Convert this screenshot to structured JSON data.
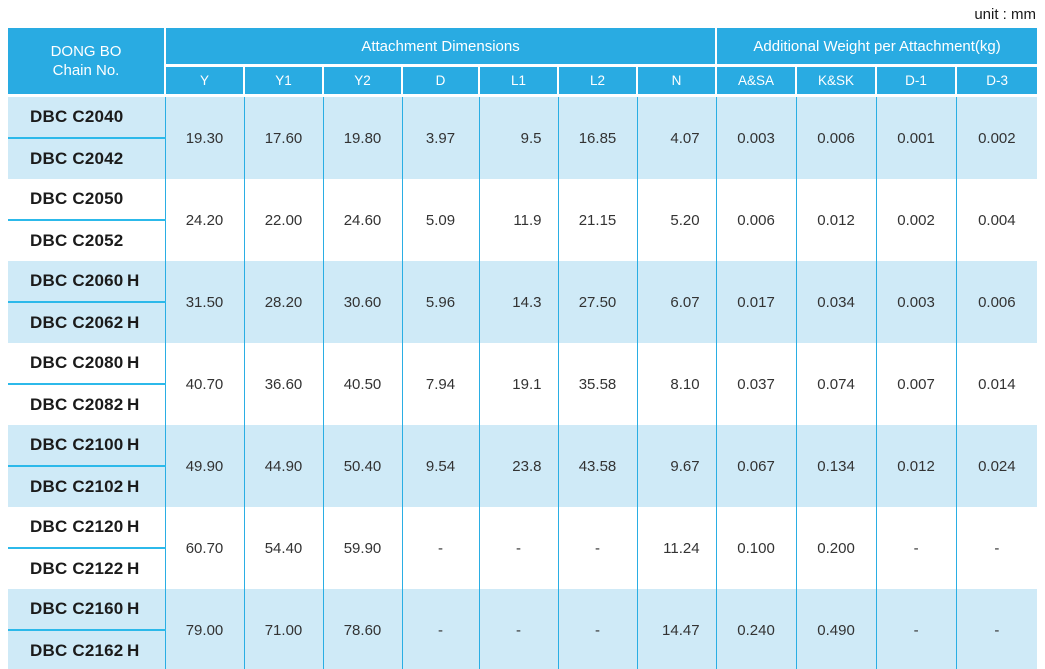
{
  "unit_label": "unit : mm",
  "colors": {
    "header_bg": "#29abe2",
    "row_shaded_bg": "#cfeaf7",
    "grid_border": "#2aaee4",
    "header_text": "#ffffff",
    "chain_text": "#1b1b1b",
    "value_text": "#333333"
  },
  "table": {
    "chain_header_lines": [
      "DONG BO",
      "Chain No."
    ],
    "sections": [
      {
        "label": "Attachment Dimensions",
        "columns": [
          "Y",
          "Y1",
          "Y2",
          "D",
          "L1",
          "L2",
          "N"
        ]
      },
      {
        "label": "Additional Weight per Attachment(kg)",
        "columns": [
          "A&SA",
          "K&SK",
          "D-1",
          "D-3"
        ]
      }
    ],
    "groups": [
      {
        "shaded": true,
        "chains": [
          "DBC C2040",
          "DBC C2042"
        ],
        "values": [
          "19.30",
          "17.60",
          "19.80",
          "3.97",
          "9.5",
          "16.85",
          "4.07",
          "0.003",
          "0.006",
          "0.001",
          "0.002"
        ]
      },
      {
        "shaded": false,
        "chains": [
          "DBC C2050",
          "DBC C2052"
        ],
        "values": [
          "24.20",
          "22.00",
          "24.60",
          "5.09",
          "11.9",
          "21.15",
          "5.20",
          "0.006",
          "0.012",
          "0.002",
          "0.004"
        ]
      },
      {
        "shaded": true,
        "chains": [
          "DBC C2060 H",
          "DBC C2062 H"
        ],
        "values": [
          "31.50",
          "28.20",
          "30.60",
          "5.96",
          "14.3",
          "27.50",
          "6.07",
          "0.017",
          "0.034",
          "0.003",
          "0.006"
        ]
      },
      {
        "shaded": false,
        "chains": [
          "DBC C2080 H",
          "DBC C2082 H"
        ],
        "values": [
          "40.70",
          "36.60",
          "40.50",
          "7.94",
          "19.1",
          "35.58",
          "8.10",
          "0.037",
          "0.074",
          "0.007",
          "0.014"
        ]
      },
      {
        "shaded": true,
        "chains": [
          "DBC C2100 H",
          "DBC C2102 H"
        ],
        "values": [
          "49.90",
          "44.90",
          "50.40",
          "9.54",
          "23.8",
          "43.58",
          "9.67",
          "0.067",
          "0.134",
          "0.012",
          "0.024"
        ]
      },
      {
        "shaded": false,
        "chains": [
          "DBC C2120 H",
          "DBC C2122 H"
        ],
        "values": [
          "60.70",
          "54.40",
          "59.90",
          "-",
          "-",
          "-",
          "11.24",
          "0.100",
          "0.200",
          "-",
          "-"
        ]
      },
      {
        "shaded": true,
        "chains": [
          "DBC C2160 H",
          "DBC C2162 H"
        ],
        "values": [
          "79.00",
          "71.00",
          "78.60",
          "-",
          "-",
          "-",
          "14.47",
          "0.240",
          "0.490",
          "-",
          "-"
        ]
      }
    ]
  }
}
